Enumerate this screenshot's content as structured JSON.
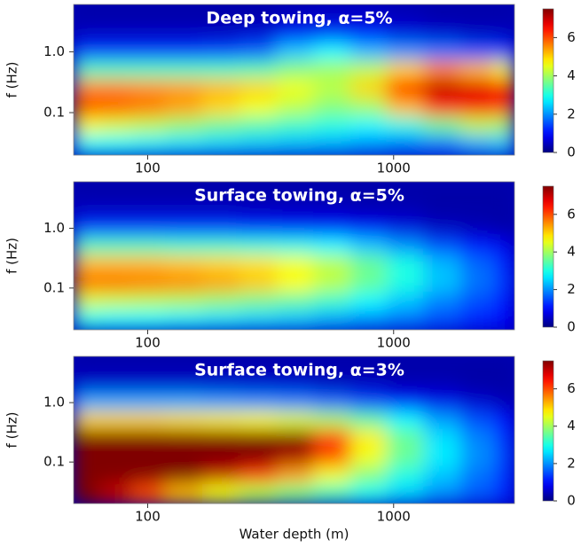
{
  "chart_data": [
    {
      "type": "heatmap",
      "title": "Deep towing, α=5%",
      "ylabel": "f (Hz)",
      "colormap": "jet",
      "xscale": "log",
      "yscale": "log",
      "x": [
        55,
        75,
        100,
        140,
        200,
        280,
        400,
        560,
        800,
        1100,
        1600,
        2200,
        3000
      ],
      "y": [
        4,
        2,
        1,
        0.5,
        0.25,
        0.12,
        0.06,
        0.03
      ],
      "z": [
        [
          0.3,
          0.3,
          0.3,
          0.3,
          0.3,
          0.3,
          0.4,
          0.5,
          0.5,
          0.4,
          0.3,
          0.3,
          0.3
        ],
        [
          0.5,
          0.5,
          0.5,
          0.5,
          0.5,
          0.6,
          0.9,
          1.2,
          1.0,
          0.7,
          0.6,
          0.5,
          0.5
        ],
        [
          1.3,
          1.3,
          1.3,
          1.3,
          1.4,
          1.6,
          2.4,
          2.8,
          2.3,
          2.0,
          1.8,
          1.5,
          1.3
        ],
        [
          3.3,
          3.3,
          3.3,
          3.3,
          3.3,
          3.4,
          3.8,
          4.0,
          4.2,
          5.0,
          5.6,
          5.2,
          4.6
        ],
        [
          5.6,
          5.6,
          5.5,
          5.4,
          5.2,
          5.0,
          4.6,
          4.2,
          5.0,
          6.4,
          7.0,
          6.8,
          6.4
        ],
        [
          6.0,
          5.9,
          5.7,
          5.4,
          5.0,
          4.6,
          4.2,
          3.8,
          4.0,
          5.2,
          6.4,
          6.6,
          6.2
        ],
        [
          4.6,
          4.4,
          4.2,
          3.9,
          3.6,
          3.4,
          3.2,
          3.0,
          2.8,
          3.0,
          3.6,
          4.2,
          4.0
        ],
        [
          2.8,
          2.8,
          2.7,
          2.6,
          2.5,
          2.4,
          2.3,
          2.2,
          2.0,
          1.8,
          1.8,
          2.2,
          2.4
        ]
      ],
      "xlim": [
        50,
        3100
      ],
      "ylim": [
        0.02,
        6
      ],
      "xticks": [
        100,
        1000
      ],
      "yticks": [
        {
          "value": 1,
          "label": "1.0"
        },
        0.1
      ],
      "clim": [
        0,
        7.5
      ],
      "cticks": [
        0,
        2,
        4,
        6
      ]
    },
    {
      "type": "heatmap",
      "title": "Surface towing, α=5%",
      "ylabel": "f (Hz)",
      "colormap": "jet",
      "xscale": "log",
      "yscale": "log",
      "x": [
        55,
        75,
        100,
        140,
        200,
        280,
        400,
        560,
        800,
        1100,
        1600,
        2200,
        3000
      ],
      "y": [
        4,
        2,
        1,
        0.5,
        0.25,
        0.12,
        0.06,
        0.03
      ],
      "z": [
        [
          0.3,
          0.3,
          0.3,
          0.3,
          0.3,
          0.3,
          0.3,
          0.3,
          0.3,
          0.3,
          0.3,
          0.3,
          0.3
        ],
        [
          0.5,
          0.5,
          0.5,
          0.5,
          0.5,
          0.5,
          0.5,
          0.5,
          0.4,
          0.4,
          0.3,
          0.3,
          0.3
        ],
        [
          1.3,
          1.3,
          1.3,
          1.3,
          1.3,
          1.2,
          1.1,
          1.0,
          0.9,
          0.7,
          0.5,
          0.4,
          0.3
        ],
        [
          3.3,
          3.3,
          3.3,
          3.2,
          3.2,
          3.1,
          3.0,
          2.8,
          2.4,
          2.0,
          1.5,
          1.1,
          0.8
        ],
        [
          5.2,
          5.2,
          5.2,
          5.1,
          5.0,
          4.9,
          4.6,
          4.2,
          3.6,
          3.0,
          2.3,
          1.7,
          1.2
        ],
        [
          5.8,
          5.8,
          5.7,
          5.6,
          5.4,
          5.1,
          4.7,
          4.2,
          3.6,
          3.0,
          2.4,
          1.8,
          1.3
        ],
        [
          4.4,
          4.3,
          4.2,
          4.1,
          3.9,
          3.7,
          3.5,
          3.2,
          2.8,
          2.4,
          1.9,
          1.5,
          1.1
        ],
        [
          2.9,
          2.8,
          2.8,
          2.7,
          2.6,
          2.5,
          2.4,
          2.2,
          2.0,
          1.8,
          1.5,
          1.2,
          0.9
        ]
      ],
      "xlim": [
        50,
        3100
      ],
      "ylim": [
        0.02,
        6
      ],
      "xticks": [
        100,
        1000
      ],
      "yticks": [
        {
          "value": 1,
          "label": "1.0"
        },
        0.1
      ],
      "clim": [
        0,
        7.5
      ],
      "cticks": [
        0,
        2,
        4,
        6
      ]
    },
    {
      "type": "heatmap",
      "title": "Surface towing, α=3%",
      "ylabel": "f (Hz)",
      "xlabel": "Water depth (m)",
      "colormap": "jet",
      "xscale": "log",
      "yscale": "log",
      "x": [
        55,
        75,
        100,
        140,
        200,
        280,
        400,
        560,
        800,
        1100,
        1600,
        2200,
        3000
      ],
      "y": [
        4,
        2,
        1,
        0.5,
        0.25,
        0.12,
        0.06,
        0.03
      ],
      "z": [
        [
          0.3,
          0.3,
          0.3,
          0.3,
          0.3,
          0.3,
          0.3,
          0.3,
          0.3,
          0.3,
          0.3,
          0.3,
          0.3
        ],
        [
          0.6,
          0.6,
          0.6,
          0.6,
          0.6,
          0.6,
          0.6,
          0.5,
          0.5,
          0.4,
          0.4,
          0.3,
          0.3
        ],
        [
          2.2,
          2.2,
          2.2,
          2.2,
          2.1,
          2.0,
          1.9,
          1.7,
          1.4,
          1.1,
          0.8,
          0.6,
          0.4
        ],
        [
          5.0,
          5.0,
          5.0,
          4.9,
          4.8,
          4.7,
          4.5,
          4.1,
          3.5,
          2.8,
          2.1,
          1.5,
          1.0
        ],
        [
          9,
          9,
          9,
          9,
          8.5,
          8.0,
          7.5,
          6.2,
          4.8,
          3.6,
          2.6,
          1.9,
          1.3
        ],
        [
          9,
          9,
          9,
          9,
          8.5,
          8.0,
          7.2,
          6.0,
          4.6,
          3.6,
          2.7,
          2.0,
          1.4
        ],
        [
          9,
          9,
          8.5,
          7.8,
          7.0,
          6.2,
          5.4,
          4.6,
          3.8,
          3.0,
          2.4,
          1.8,
          1.3
        ],
        [
          8,
          7.0,
          6.0,
          5.2,
          4.6,
          4.1,
          3.7,
          3.3,
          2.9,
          2.5,
          2.0,
          1.6,
          1.2
        ]
      ],
      "xlim": [
        50,
        3100
      ],
      "ylim": [
        0.02,
        6
      ],
      "xticks": [
        100,
        1000
      ],
      "yticks": [
        {
          "value": 1,
          "label": "1.0"
        },
        0.1
      ],
      "clim": [
        0,
        7.5
      ],
      "cticks": [
        0,
        2,
        4,
        6
      ]
    }
  ]
}
